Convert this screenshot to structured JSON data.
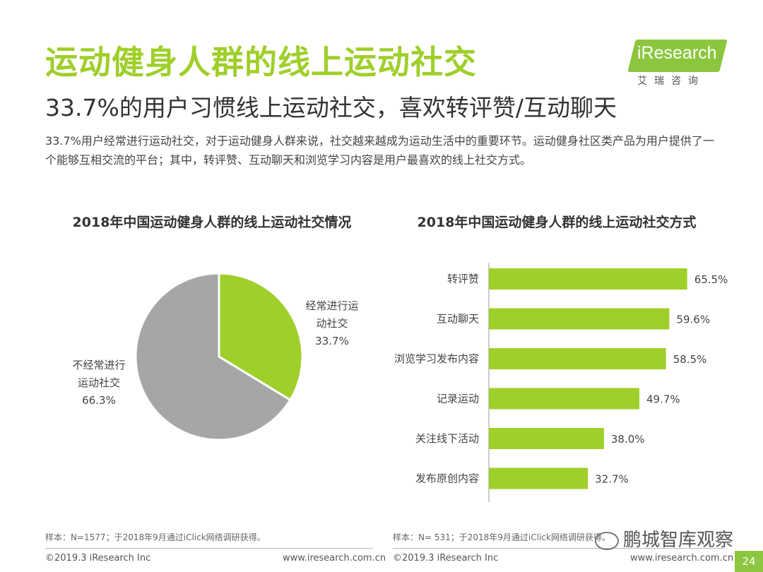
{
  "header": {
    "title": "运动健身人群的线上运动社交",
    "subtitle": "33.7%的用户习惯线上运动社交，喜欢转评赞/互动聊天",
    "description": "33.7%用户经常进行运动社交，对于运动健身人群来说，社交越来越成为运动生活中的重要环节。运动健身社区类产品为用户提供了一个能够互相交流的平台；其中，转评赞、互动聊天和浏览学习内容是用户最喜欢的线上社交方式。"
  },
  "logo": {
    "text": "iResearch",
    "cn": "艾瑞咨询",
    "badge_color": "#8cc63f"
  },
  "chart_data": [
    {
      "type": "pie",
      "title": "2018年中国运动健身人群的线上运动社交情况",
      "slices": [
        {
          "label_lines": [
            "经常进行运",
            "动社交"
          ],
          "percent_label": "33.7%",
          "value": 33.7,
          "color": "#9fcf2a"
        },
        {
          "label_lines": [
            "不经常进行",
            "运动社交"
          ],
          "percent_label": "66.3%",
          "value": 66.3,
          "color": "#a6a6a6"
        }
      ]
    },
    {
      "type": "bar",
      "orientation": "horizontal",
      "title": "2018年中国运动健身人群的线上运动社交方式",
      "categories": [
        "转评赞",
        "互动聊天",
        "浏览学习发布内容",
        "记录运动",
        "关注线下活动",
        "发布原创内容"
      ],
      "values": [
        65.5,
        59.6,
        58.5,
        49.7,
        38.0,
        32.7
      ],
      "value_labels": [
        "65.5%",
        "59.6%",
        "58.5%",
        "49.7%",
        "38.0%",
        "32.7%"
      ],
      "color": "#9fcf2a",
      "xlim": [
        0,
        70
      ]
    }
  ],
  "footnotes": {
    "left": "样本：N=1577；于2018年9月通过iClick网络调研获得。",
    "right": "样本：N= 531；于2018年9月通过iClick网络调研获得。"
  },
  "footer": {
    "copyright_left": "©2019.3  iResearch Inc",
    "url_left": "www.iresearch.com.cn",
    "copyright_right": "©2019.3  iResearch Inc",
    "url_right": "www.iresearch.com.cn",
    "page": "24"
  },
  "watermark": {
    "text": "鹏城智库观察",
    "icon": "wechat-icon"
  }
}
